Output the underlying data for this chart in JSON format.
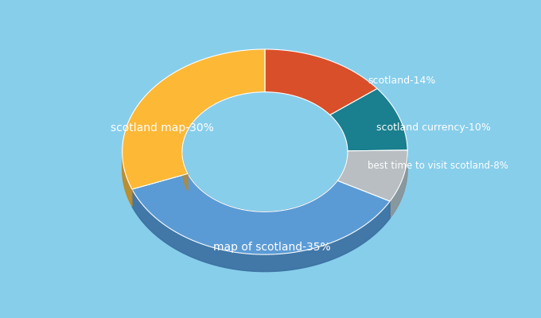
{
  "labels": [
    "scotland",
    "scotland currency",
    "best time to visit scotland",
    "map of scotland",
    "scotland map"
  ],
  "values": [
    14,
    10,
    8,
    35,
    30
  ],
  "label_texts": [
    "scotland-14%",
    "scotland currency-10%",
    "best time to visit scotland-8%",
    "map of scotland-35%",
    "scotland map-30%"
  ],
  "colors": [
    "#D94F2A",
    "#1A7F8E",
    "#B8BEC2",
    "#5B9BD5",
    "#FDB836"
  ],
  "shadow_colors": [
    "#a03820",
    "#0f5060",
    "#8a9296",
    "#3a6fa0",
    "#c08820"
  ],
  "background_color": "#87CEEB",
  "text_color": "#FFFFFF",
  "startangle": 90
}
